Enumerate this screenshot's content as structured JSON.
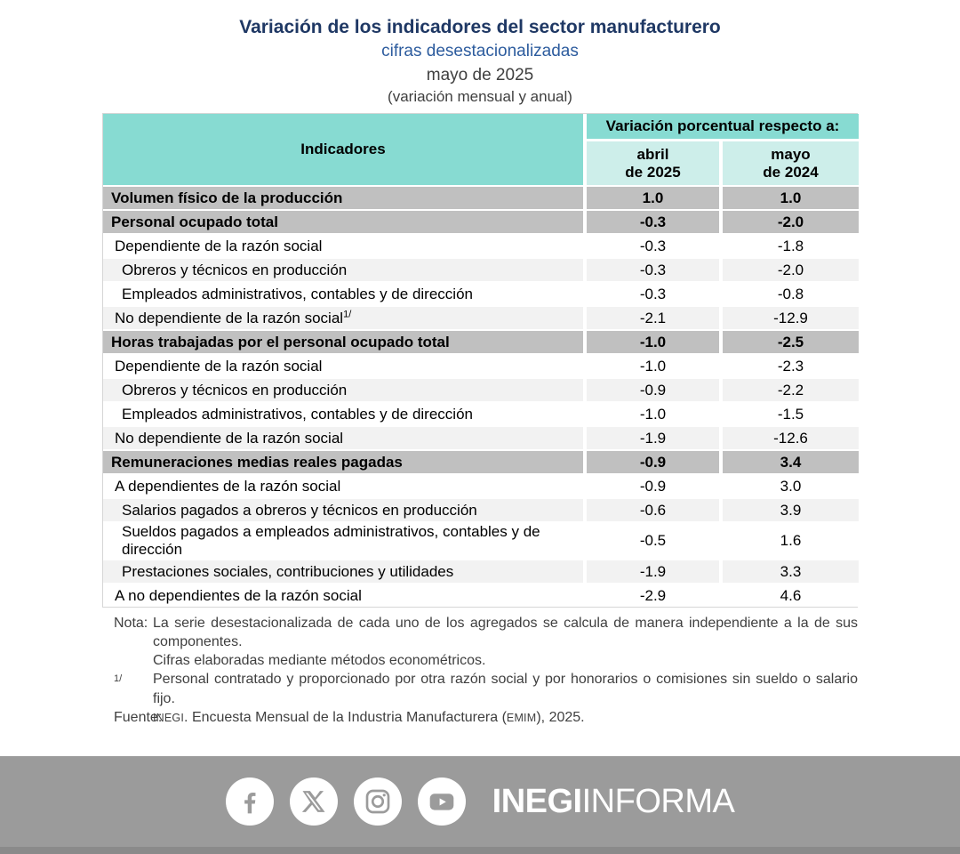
{
  "header": {
    "title": "Variación de los indicadores del sector manufacturero",
    "subtitle": "cifras desestacionalizadas",
    "period": "mayo de 2025",
    "variation_note": "(variación mensual y anual)"
  },
  "table": {
    "indicators_header": "Indicadores",
    "variation_header": "Variación porcentual respecto a:",
    "col_april": {
      "line1": "abril",
      "line2": "de 2025"
    },
    "col_may": {
      "line1": "mayo",
      "line2": "de 2024"
    },
    "rows": [
      {
        "label": "Volumen físico de la producción",
        "sup": "",
        "level": 0,
        "section": true,
        "abril": "1.0",
        "mayo": "1.0"
      },
      {
        "label": "Personal ocupado total",
        "sup": "",
        "level": 0,
        "section": true,
        "abril": "-0.3",
        "mayo": "-2.0"
      },
      {
        "label": "Dependiente de la razón social",
        "sup": "",
        "level": 1,
        "section": false,
        "abril": "-0.3",
        "mayo": "-1.8"
      },
      {
        "label": "Obreros y técnicos en producción",
        "sup": "",
        "level": 2,
        "section": false,
        "abril": "-0.3",
        "mayo": "-2.0"
      },
      {
        "label": "Empleados administrativos, contables y de dirección",
        "sup": "",
        "level": 2,
        "section": false,
        "abril": "-0.3",
        "mayo": "-0.8"
      },
      {
        "label": "No dependiente de la razón social",
        "sup": "1/",
        "level": 1,
        "section": false,
        "abril": "-2.1",
        "mayo": "-12.9"
      },
      {
        "label": "Horas trabajadas por el personal ocupado total",
        "sup": "",
        "level": 0,
        "section": true,
        "abril": "-1.0",
        "mayo": "-2.5"
      },
      {
        "label": "Dependiente de la razón social",
        "sup": "",
        "level": 1,
        "section": false,
        "abril": "-1.0",
        "mayo": "-2.3"
      },
      {
        "label": "Obreros y técnicos en producción",
        "sup": "",
        "level": 2,
        "section": false,
        "abril": "-0.9",
        "mayo": "-2.2"
      },
      {
        "label": "Empleados administrativos, contables y de dirección",
        "sup": "",
        "level": 2,
        "section": false,
        "abril": "-1.0",
        "mayo": "-1.5"
      },
      {
        "label": "No dependiente de la razón social",
        "sup": "",
        "level": 1,
        "section": false,
        "abril": "-1.9",
        "mayo": "-12.6"
      },
      {
        "label": "Remuneraciones medias reales pagadas",
        "sup": "",
        "level": 0,
        "section": true,
        "abril": "-0.9",
        "mayo": "3.4"
      },
      {
        "label": "A dependientes de la razón social",
        "sup": "",
        "level": 1,
        "section": false,
        "abril": "-0.9",
        "mayo": "3.0"
      },
      {
        "label": "Salarios pagados a obreros y técnicos en producción",
        "sup": "",
        "level": 2,
        "section": false,
        "abril": "-0.6",
        "mayo": "3.9"
      },
      {
        "label": "Sueldos pagados a empleados administrativos, contables y de dirección",
        "sup": "",
        "level": 2,
        "section": false,
        "abril": "-0.5",
        "mayo": "1.6"
      },
      {
        "label": "Prestaciones sociales, contribuciones y utilidades",
        "sup": "",
        "level": 2,
        "section": false,
        "abril": "-1.9",
        "mayo": "3.3"
      },
      {
        "label": "A no dependientes de la razón social",
        "sup": "",
        "level": 1,
        "section": false,
        "abril": "-2.9",
        "mayo": "4.6"
      }
    ]
  },
  "notes": [
    {
      "label": "Nota:",
      "suplabel": false,
      "text": "La serie desestacionalizada de cada uno de los agregados se calcula de manera independiente a la de sus componentes."
    },
    {
      "label": "",
      "suplabel": false,
      "text": "Cifras elaboradas mediante métodos econométricos."
    },
    {
      "label": "1/",
      "suplabel": true,
      "text": "Personal contratado y proporcionado por otra razón social y por honorarios o comisiones sin sueldo o salario fijo."
    }
  ],
  "fuente": {
    "label": "Fuente:",
    "parts": [
      {
        "text": "INEGI",
        "smallcaps": true
      },
      {
        "text": ". Encuesta Mensual de la Industria Manufacturera (",
        "smallcaps": false
      },
      {
        "text": "EMIM",
        "smallcaps": true
      },
      {
        "text": "), 2025.",
        "smallcaps": false
      }
    ]
  },
  "footer": {
    "icons": [
      "facebook-icon",
      "x-icon",
      "instagram-icon",
      "youtube-icon"
    ],
    "brand_bold": "INEGI",
    "brand_regular": "INFORMA"
  },
  "colors": {
    "teal_header": "#87DBD2",
    "teal_light": "#CDEEEA",
    "section_gray": "#C0C0C0",
    "row_shade": "#F2F2F2",
    "title_navy": "#1F3864",
    "subtitle_blue": "#2D5C9E",
    "text_gray": "#3F3F3F",
    "footer_gray": "#9B9B9B",
    "footer_dark": "#8A8A8A"
  }
}
